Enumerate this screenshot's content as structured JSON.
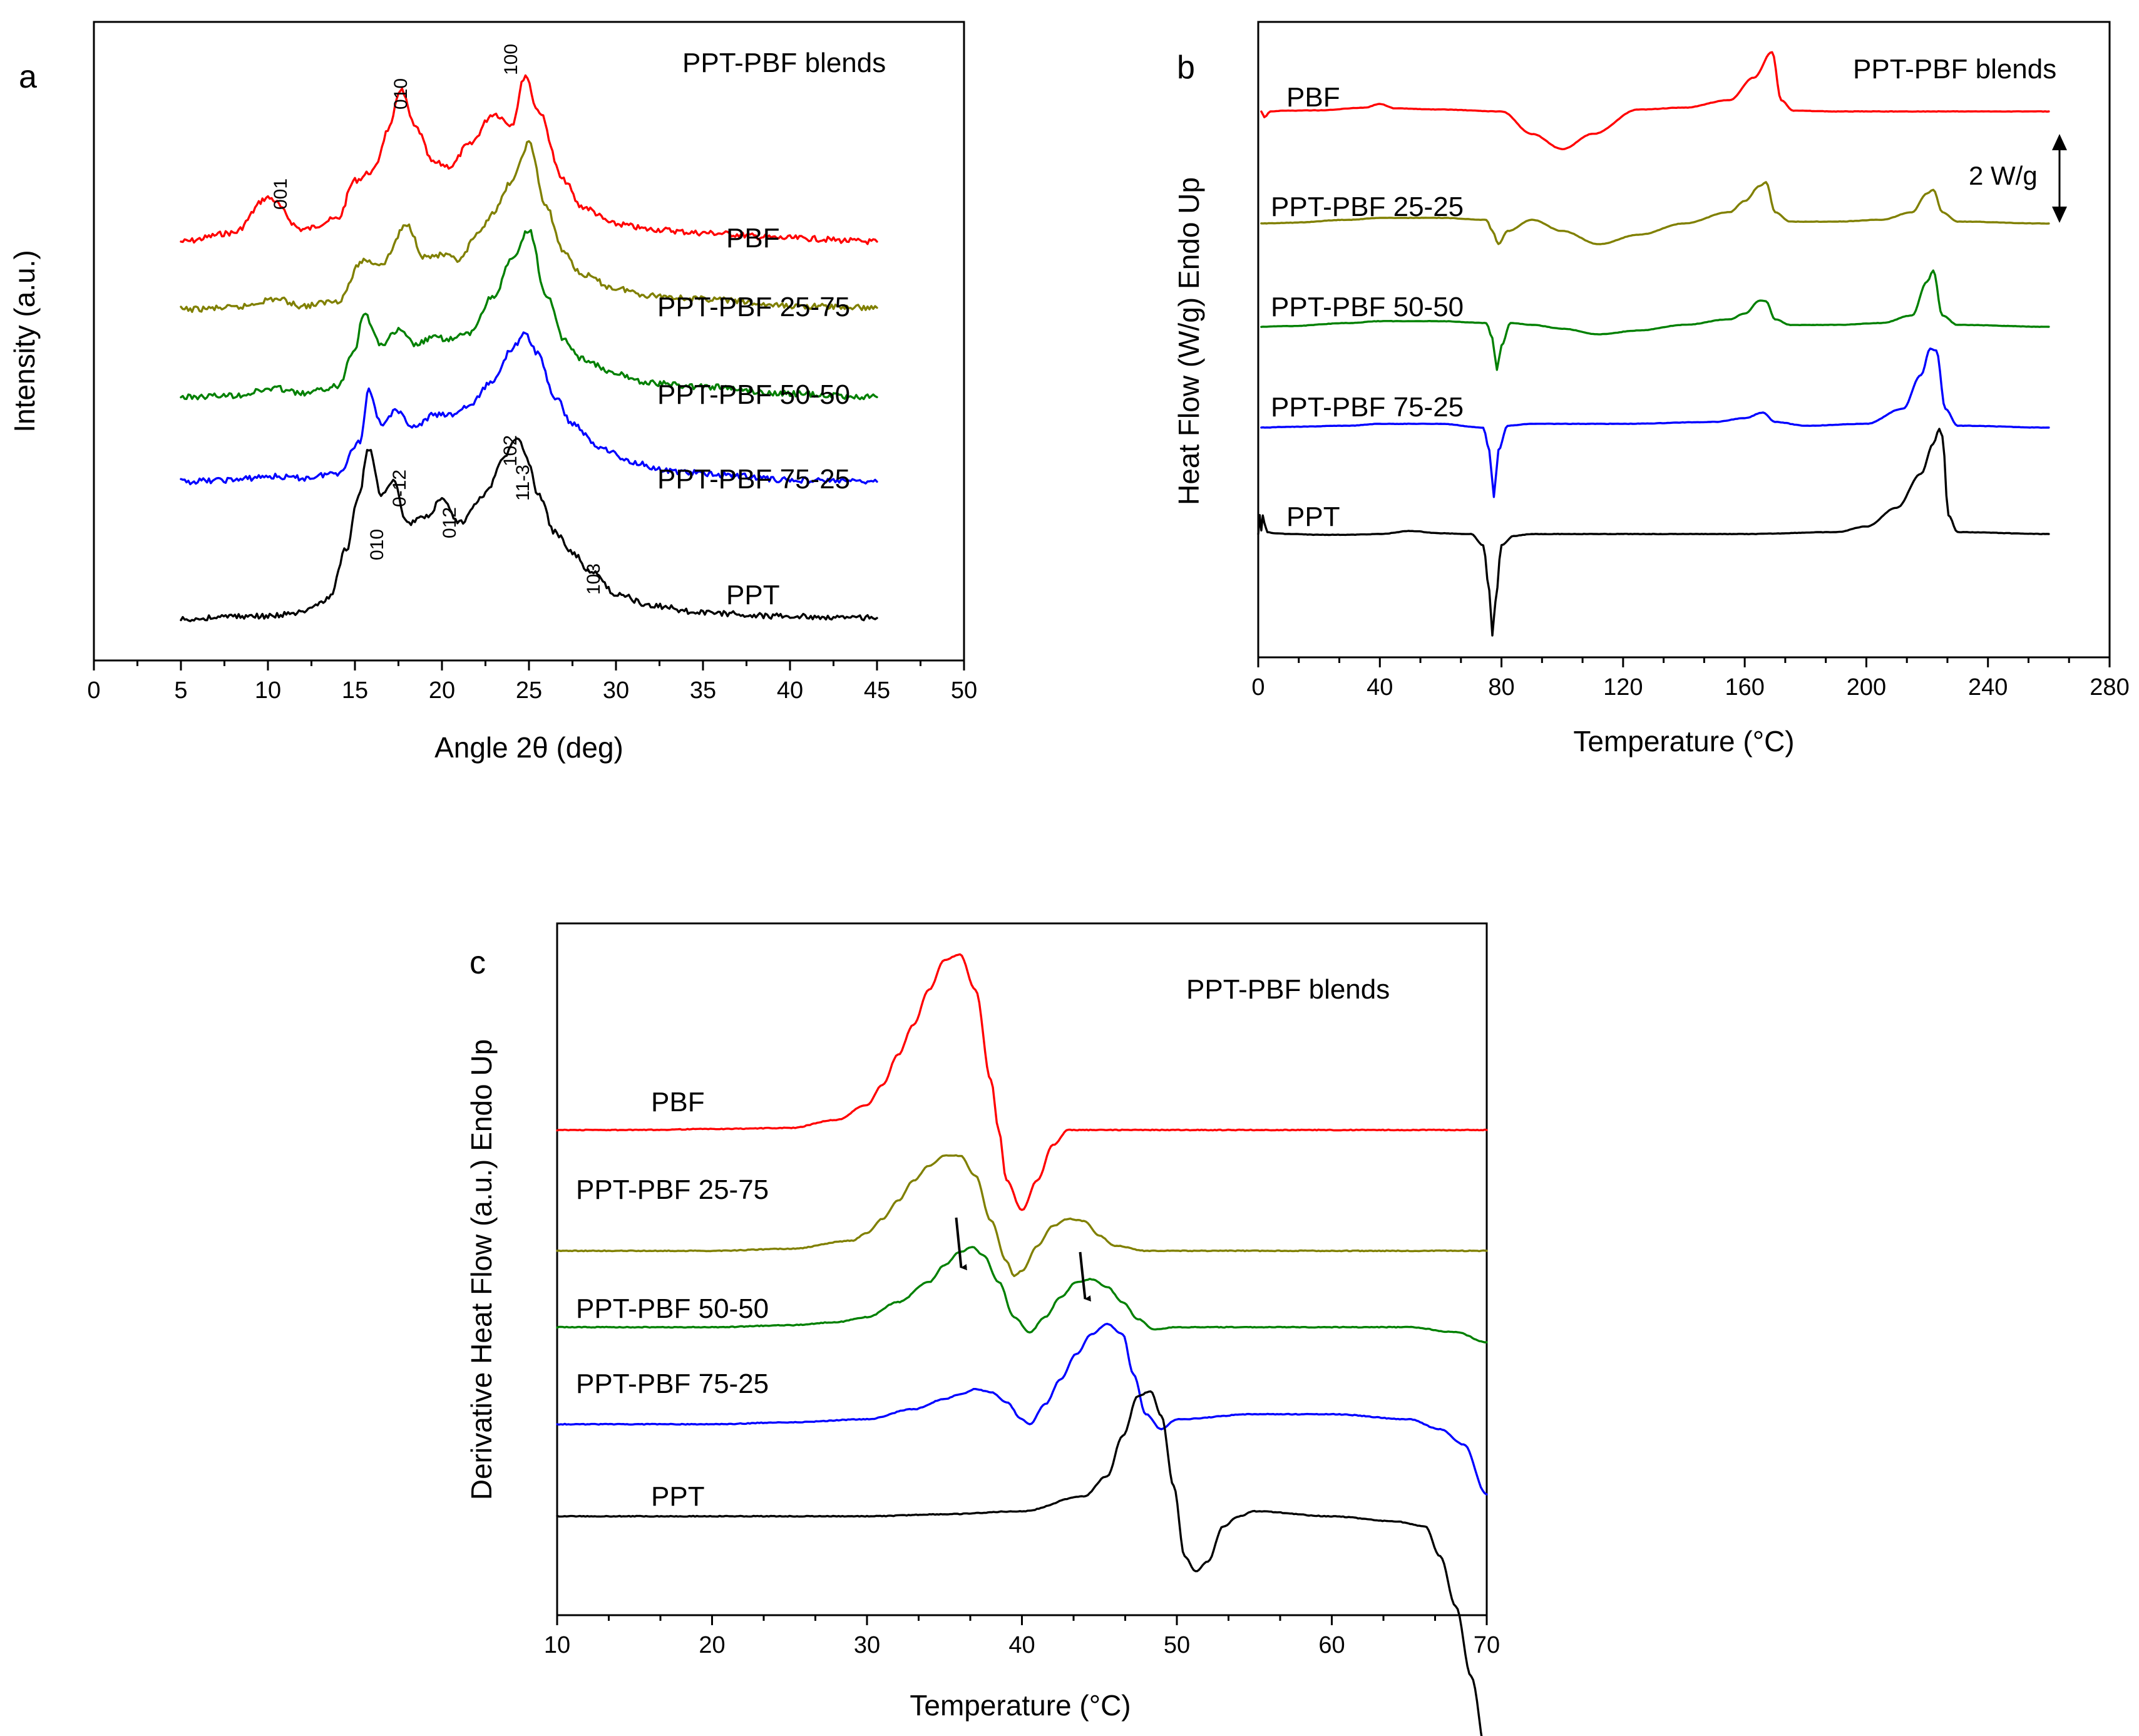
{
  "chart_data": [
    {
      "panel": "a",
      "type": "line",
      "title": "PPT-PBF blends",
      "xlabel": "Angle 2θ (deg)",
      "ylabel": "Intensity (a.u.)",
      "xlim": [
        0,
        50
      ],
      "xticks": [
        0,
        5,
        10,
        15,
        20,
        25,
        30,
        35,
        40,
        45,
        50
      ],
      "y_ticks_shown": false,
      "legend": "inline labels right of curves",
      "series": [
        {
          "name": "PBF",
          "color": "#ff0000",
          "x": [
            5,
            8,
            10,
            12,
            14,
            15,
            16,
            17,
            17.6,
            18.5,
            19.5,
            20.5,
            21.5,
            23,
            24,
            24.8,
            25.5,
            27,
            28,
            30,
            32,
            35,
            40,
            45
          ],
          "y": [
            0.05,
            0.1,
            0.3,
            0.12,
            0.18,
            0.4,
            0.45,
            0.7,
            0.92,
            0.7,
            0.5,
            0.48,
            0.6,
            0.78,
            0.72,
            1.0,
            0.8,
            0.4,
            0.25,
            0.15,
            0.12,
            0.1,
            0.07,
            0.05
          ]
        },
        {
          "name": "PPT-PBF 25-75",
          "color": "#808000",
          "x": [
            5,
            8,
            10.5,
            12,
            14,
            15.5,
            16.5,
            18,
            19,
            20,
            21,
            22,
            23,
            24,
            25,
            26,
            27,
            28,
            30,
            32,
            35,
            40,
            45
          ],
          "y": [
            0.02,
            0.03,
            0.08,
            0.04,
            0.07,
            0.3,
            0.28,
            0.5,
            0.32,
            0.33,
            0.3,
            0.44,
            0.58,
            0.75,
            0.97,
            0.6,
            0.35,
            0.22,
            0.14,
            0.1,
            0.08,
            0.04,
            0.03
          ]
        },
        {
          "name": "PPT-PBF 50-50",
          "color": "#008000",
          "x": [
            5,
            8,
            10.5,
            12,
            14,
            15,
            15.5,
            16.5,
            17.5,
            18.5,
            19.5,
            20.5,
            21.5,
            23,
            24,
            25,
            26,
            27,
            28,
            30,
            32,
            35,
            40,
            45
          ],
          "y": [
            0.02,
            0.03,
            0.07,
            0.04,
            0.08,
            0.3,
            0.5,
            0.32,
            0.4,
            0.32,
            0.36,
            0.35,
            0.38,
            0.6,
            0.8,
            0.97,
            0.6,
            0.35,
            0.24,
            0.15,
            0.1,
            0.08,
            0.04,
            0.02
          ]
        },
        {
          "name": "PPT-PBF 75-25",
          "color": "#0000ff",
          "x": [
            5,
            8,
            10,
            12,
            14,
            15.3,
            15.8,
            16.5,
            17.3,
            18.5,
            19.5,
            20.5,
            21.5,
            23,
            24,
            24.8,
            25.5,
            26.5,
            27.5,
            29,
            31,
            33,
            36,
            40,
            45
          ],
          "y": [
            0.02,
            0.03,
            0.05,
            0.04,
            0.07,
            0.25,
            0.55,
            0.35,
            0.42,
            0.33,
            0.4,
            0.4,
            0.45,
            0.6,
            0.78,
            0.86,
            0.75,
            0.5,
            0.35,
            0.22,
            0.13,
            0.08,
            0.06,
            0.03,
            0.02
          ]
        },
        {
          "name": "PPT",
          "color": "#000000",
          "x": [
            5,
            8,
            10,
            12,
            13.5,
            14.5,
            15.2,
            15.8,
            16.5,
            17.2,
            18,
            19,
            20,
            21,
            22.5,
            23.5,
            24.3,
            25,
            25.5,
            26.5,
            27.5,
            28.5,
            30,
            32,
            35,
            40,
            45
          ],
          "y": [
            0.0,
            0.02,
            0.02,
            0.04,
            0.12,
            0.4,
            0.7,
            0.98,
            0.72,
            0.8,
            0.55,
            0.58,
            0.68,
            0.55,
            0.72,
            0.92,
            1.04,
            0.9,
            0.72,
            0.5,
            0.38,
            0.28,
            0.15,
            0.08,
            0.04,
            0.02,
            0.01
          ]
        }
      ],
      "annotations": [
        {
          "text": "001",
          "x": 10.3
        },
        {
          "text": "010",
          "x": 17.6
        },
        {
          "text": "100",
          "x": 24.6
        },
        {
          "text": "010",
          "x": 15.8
        },
        {
          "text": "0-12",
          "x": 17.3
        },
        {
          "text": "012",
          "x": 20.2
        },
        {
          "text": "102",
          "x": 23.8
        },
        {
          "text": "11-3",
          "x": 24.7
        },
        {
          "text": "103",
          "x": 28.3
        }
      ]
    },
    {
      "panel": "b",
      "type": "line",
      "title": "PPT-PBF blends",
      "xlabel": "Temperature (°C)",
      "ylabel": "Heat Flow (W/g) Endo Up",
      "xlim": [
        0,
        280
      ],
      "xticks": [
        0,
        40,
        80,
        120,
        160,
        200,
        240,
        280
      ],
      "y_ticks_shown": false,
      "scale_bar": "2 W/g",
      "legend": "inline labels above curves",
      "series": [
        {
          "name": "PBF",
          "color": "#ff0000",
          "x": [
            1,
            2,
            4,
            8,
            20,
            35,
            40,
            45,
            60,
            80,
            90,
            100,
            110,
            125,
            140,
            155,
            163,
            169,
            172,
            176,
            190,
            220,
            260
          ],
          "y": [
            0.0,
            -0.15,
            0.0,
            0.02,
            0.03,
            0.1,
            0.2,
            0.08,
            0.05,
            0.0,
            -0.6,
            -1.0,
            -0.6,
            0.05,
            0.1,
            0.3,
            0.9,
            1.58,
            0.3,
            0.02,
            0.0,
            0.0,
            0.0
          ]
        },
        {
          "name": "PPT-PBF 25-25",
          "color": "#808000",
          "x": [
            1,
            10,
            30,
            40,
            60,
            75,
            77,
            79,
            82,
            90,
            100,
            112,
            125,
            140,
            155,
            160,
            165,
            167,
            170,
            175,
            190,
            205,
            215,
            220,
            222,
            225,
            230,
            260
          ],
          "y": [
            0.0,
            0.02,
            0.1,
            0.15,
            0.15,
            0.1,
            -0.2,
            -0.55,
            -0.2,
            0.1,
            -0.2,
            -0.55,
            -0.3,
            0.0,
            0.3,
            0.6,
            1.0,
            1.1,
            0.3,
            0.05,
            0.05,
            0.1,
            0.3,
            0.8,
            0.9,
            0.3,
            0.05,
            0.0
          ]
        },
        {
          "name": "PPT-PBF 50-50",
          "color": "#008000",
          "x": [
            1,
            10,
            30,
            40,
            60,
            75,
            77,
            78.5,
            80,
            83,
            90,
            100,
            112,
            125,
            140,
            155,
            160,
            165,
            167,
            170,
            175,
            190,
            205,
            215,
            220,
            222,
            225,
            230,
            260
          ],
          "y": [
            0.0,
            0.02,
            0.1,
            0.15,
            0.15,
            0.1,
            -0.3,
            -1.15,
            -0.5,
            0.1,
            0.05,
            -0.05,
            -0.2,
            -0.1,
            0.05,
            0.2,
            0.35,
            0.7,
            0.68,
            0.2,
            0.05,
            0.05,
            0.1,
            0.3,
            1.2,
            1.5,
            0.3,
            0.05,
            0.0
          ]
        },
        {
          "name": "PPT-PBF 75-25",
          "color": "#0000ff",
          "x": [
            1,
            10,
            30,
            40,
            60,
            74,
            76,
            77.5,
            79,
            82,
            90,
            120,
            150,
            160,
            166,
            170,
            180,
            200,
            212,
            218,
            221,
            223,
            226,
            230,
            260
          ],
          "y": [
            0.0,
            0.02,
            0.05,
            0.1,
            0.1,
            0.0,
            -0.6,
            -1.85,
            -0.6,
            0.05,
            0.1,
            0.1,
            0.15,
            0.25,
            0.4,
            0.15,
            0.05,
            0.1,
            0.5,
            1.4,
            2.1,
            2.05,
            0.5,
            0.05,
            0.0
          ]
        },
        {
          "name": "PPT",
          "color": "#000000",
          "x": [
            0,
            0.5,
            1,
            1.5,
            2,
            3,
            5,
            10,
            20,
            30,
            40,
            50,
            60,
            70,
            74,
            76,
            77,
            78,
            80,
            84,
            90,
            120,
            160,
            190,
            200,
            210,
            218,
            222,
            224,
            225,
            227,
            230,
            260
          ],
          "y": [
            0.0,
            0.5,
            0.1,
            0.5,
            0.3,
            0.05,
            0.02,
            0.0,
            -0.02,
            -0.02,
            0.0,
            0.08,
            0.02,
            0.0,
            -0.3,
            -1.5,
            -2.7,
            -1.8,
            -0.3,
            -0.05,
            0.0,
            0.0,
            0.0,
            0.05,
            0.2,
            0.7,
            1.6,
            2.4,
            2.8,
            2.6,
            0.5,
            0.05,
            0.0
          ]
        }
      ]
    },
    {
      "panel": "c",
      "type": "line",
      "title": "PPT-PBF blends",
      "xlabel": "Temperature (°C)",
      "ylabel": "Derivative Heat Flow (a.u.) Endo Up",
      "xlim": [
        10,
        70
      ],
      "xticks": [
        10,
        20,
        30,
        40,
        50,
        60,
        70
      ],
      "y_ticks_shown": false,
      "legend": "inline labels above curves",
      "series": [
        {
          "name": "PBF",
          "color": "#ff0000",
          "x": [
            10,
            15,
            20,
            25,
            28,
            30,
            31,
            32,
            33,
            34,
            35,
            36,
            37,
            38,
            38.5,
            39,
            40,
            41,
            42,
            43,
            45,
            50,
            55,
            60,
            65,
            70
          ],
          "y": [
            0.0,
            0.0,
            0.01,
            0.02,
            0.1,
            0.25,
            0.45,
            0.75,
            1.05,
            1.4,
            1.7,
            1.75,
            1.4,
            0.5,
            0.0,
            -0.5,
            -0.8,
            -0.5,
            -0.15,
            0.0,
            0.0,
            0.0,
            0.0,
            0.0,
            0.0,
            0.0
          ]
        },
        {
          "name": "PPT-PBF 25-75",
          "color": "#808000",
          "x": [
            10,
            15,
            20,
            25,
            29,
            30,
            31,
            32,
            33,
            34,
            35,
            36,
            37,
            38,
            39,
            39.5,
            40,
            41,
            42,
            43,
            44,
            45,
            46,
            48,
            50,
            55,
            60,
            65,
            70
          ],
          "y": [
            0.0,
            0.0,
            0.0,
            0.02,
            0.1,
            0.18,
            0.32,
            0.5,
            0.7,
            0.85,
            0.95,
            0.95,
            0.75,
            0.3,
            -0.1,
            -0.25,
            -0.2,
            0.05,
            0.25,
            0.32,
            0.3,
            0.15,
            0.05,
            0.0,
            0.0,
            0.0,
            0.0,
            0.0,
            0.0
          ]
        },
        {
          "name": "PPT-PBF 50-50",
          "color": "#008000",
          "x": [
            10,
            15,
            20,
            25,
            28,
            30,
            32,
            34,
            35,
            36,
            36.8,
            37.5,
            38.5,
            39.5,
            40.5,
            41.5,
            42.5,
            43.5,
            44.5,
            45.5,
            46.5,
            47.5,
            48.5,
            50,
            52,
            55,
            60,
            65,
            68,
            70
          ],
          "y": [
            0.0,
            0.0,
            0.0,
            0.02,
            0.05,
            0.1,
            0.25,
            0.45,
            0.62,
            0.75,
            0.8,
            0.72,
            0.45,
            0.1,
            -0.05,
            0.1,
            0.3,
            0.45,
            0.48,
            0.4,
            0.25,
            0.08,
            -0.02,
            0.0,
            0.0,
            0.0,
            0.0,
            0.0,
            -0.05,
            -0.15
          ]
        },
        {
          "name": "PPT-PBF 75-25",
          "color": "#0000ff",
          "x": [
            10,
            15,
            20,
            25,
            30,
            33,
            35,
            36,
            37,
            38,
            39,
            40,
            40.5,
            41.5,
            42.5,
            43.5,
            44.5,
            45.5,
            46.5,
            47.2,
            48,
            49,
            50,
            55,
            60,
            65,
            67,
            68.5,
            70
          ],
          "y": [
            0.0,
            0.0,
            0.0,
            0.02,
            0.05,
            0.15,
            0.25,
            0.3,
            0.35,
            0.32,
            0.22,
            0.05,
            0.0,
            0.2,
            0.45,
            0.7,
            0.9,
            1.0,
            0.9,
            0.5,
            0.1,
            -0.05,
            0.05,
            0.1,
            0.1,
            0.05,
            -0.05,
            -0.2,
            -0.7
          ]
        },
        {
          "name": "PPT",
          "color": "#000000",
          "x": [
            10,
            15,
            20,
            25,
            30,
            35,
            40,
            44,
            45.5,
            46.5,
            47.5,
            48.3,
            49,
            49.8,
            50.5,
            51.2,
            52,
            53,
            54,
            55,
            60,
            64,
            66,
            67,
            68,
            69,
            70
          ],
          "y": [
            0.0,
            0.0,
            0.0,
            0.0,
            0.0,
            0.02,
            0.05,
            0.2,
            0.4,
            0.8,
            1.2,
            1.25,
            1.0,
            0.3,
            -0.4,
            -0.55,
            -0.45,
            -0.1,
            0.0,
            0.05,
            0.0,
            -0.05,
            -0.1,
            -0.4,
            -0.9,
            -1.6,
            -2.4
          ]
        }
      ],
      "arrows_at_x": [
        36,
        44
      ]
    }
  ]
}
